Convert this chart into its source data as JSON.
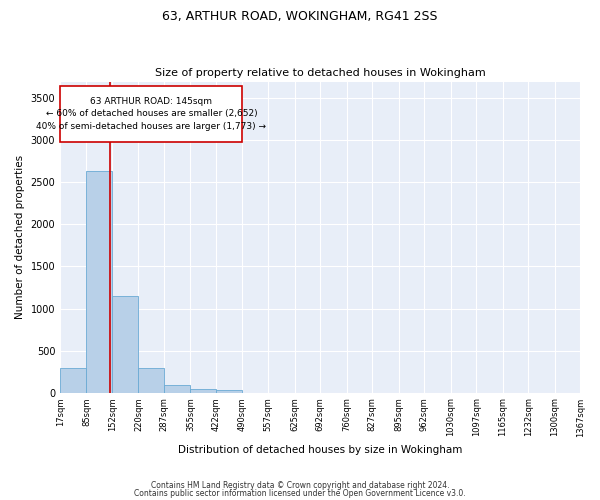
{
  "title1": "63, ARTHUR ROAD, WOKINGHAM, RG41 2SS",
  "title2": "Size of property relative to detached houses in Wokingham",
  "xlabel": "Distribution of detached houses by size in Wokingham",
  "ylabel": "Number of detached properties",
  "bar_color": "#b8d0e8",
  "bar_edge_color": "#6aaad4",
  "annotation_line_color": "#cc0000",
  "annotation_box_color": "#cc0000",
  "annotation_line1": "63 ARTHUR ROAD: 145sqm",
  "annotation_line2": "← 60% of detached houses are smaller (2,652)",
  "annotation_line3": "40% of semi-detached houses are larger (1,773) →",
  "property_size_sqm": 145,
  "bin_edges": [
    17,
    85,
    152,
    220,
    287,
    355,
    422,
    490,
    557,
    625,
    692,
    760,
    827,
    895,
    962,
    1030,
    1097,
    1165,
    1232,
    1300,
    1367
  ],
  "bin_labels": [
    "17sqm",
    "85sqm",
    "152sqm",
    "220sqm",
    "287sqm",
    "355sqm",
    "422sqm",
    "490sqm",
    "557sqm",
    "625sqm",
    "692sqm",
    "760sqm",
    "827sqm",
    "895sqm",
    "962sqm",
    "1030sqm",
    "1097sqm",
    "1165sqm",
    "1232sqm",
    "1300sqm",
    "1367sqm"
  ],
  "counts": [
    290,
    2640,
    1145,
    295,
    90,
    45,
    35,
    0,
    0,
    0,
    0,
    0,
    0,
    0,
    0,
    0,
    0,
    0,
    0,
    0
  ],
  "ylim": [
    0,
    3700
  ],
  "yticks": [
    0,
    500,
    1000,
    1500,
    2000,
    2500,
    3000,
    3500
  ],
  "footer1": "Contains HM Land Registry data © Crown copyright and database right 2024.",
  "footer2": "Contains public sector information licensed under the Open Government Licence v3.0.",
  "plot_bg_color": "#e8eef8"
}
